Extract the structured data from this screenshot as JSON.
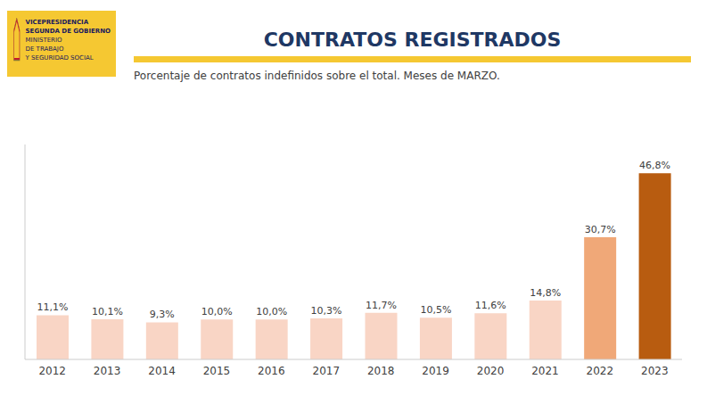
{
  "chart_data": {
    "type": "bar",
    "title": "CONTRATOS REGISTRADOS",
    "subtitle": "Porcentaje de contratos indefinidos sobre el total.  Meses de MARZO.",
    "annotations": [
      "VICEPRESIDENCIA",
      "SEGUNDA DE GOBIERNO",
      "MINISTERIO",
      "DE TRABAJO",
      "Y SEGURIDAD SOCIAL"
    ],
    "categories": [
      "2012",
      "2013",
      "2014",
      "2015",
      "2016",
      "2017",
      "2018",
      "2019",
      "2020",
      "2021",
      "2022",
      "2023"
    ],
    "values": [
      11.1,
      10.1,
      9.3,
      10.0,
      10.0,
      10.3,
      11.7,
      10.5,
      11.6,
      14.8,
      30.7,
      46.8
    ],
    "value_labels": [
      "11,1%",
      "10,1%",
      "9,3%",
      "10,0%",
      "10,0%",
      "10,3%",
      "11,7%",
      "10,5%",
      "11,6%",
      "14,8%",
      "30,7%",
      "46,8%"
    ],
    "colors": [
      "#f9d5c5",
      "#f9d5c5",
      "#f9d5c5",
      "#f9d5c5",
      "#f9d5c5",
      "#f9d5c5",
      "#f9d5c5",
      "#f9d5c5",
      "#f9d5c5",
      "#f9d5c5",
      "#f0a878",
      "#b85c10"
    ],
    "ylim": [
      0,
      54
    ],
    "data_labels": true,
    "tick_labels": "x",
    "grid": false
  }
}
